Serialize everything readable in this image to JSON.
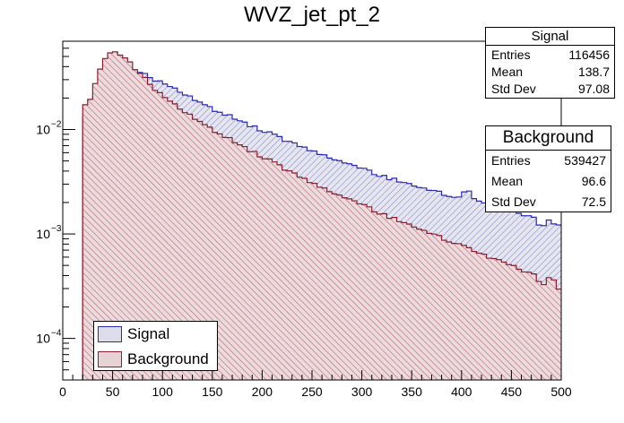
{
  "chart_data": {
    "type": "histogram",
    "title": "WVZ_jet_pt_2",
    "xlabel": "",
    "ylabel": "",
    "xlim": [
      0,
      500
    ],
    "ylim": [
      4e-05,
      0.07
    ],
    "yscale": "log",
    "x_ticks": [
      "0",
      "50",
      "100",
      "150",
      "200",
      "250",
      "300",
      "350",
      "400",
      "450",
      "500"
    ],
    "y_ticks": [
      {
        "label": "10",
        "exp": "−4",
        "value": 0.0001
      },
      {
        "label": "10",
        "exp": "−3",
        "value": 0.001
      },
      {
        "label": "10",
        "exp": "−2",
        "value": 0.01
      }
    ],
    "bin_width": 5,
    "colors": {
      "signal_line": "#2a2ab8",
      "signal_fill": "#dcdcea",
      "background_line": "#8b1d2e",
      "background_fill": "#e8d2d6"
    },
    "series": [
      {
        "name": "Signal",
        "fill_pattern": "hatched",
        "points": [
          [
            20,
            0.0
          ],
          [
            25,
            0.013
          ],
          [
            30,
            0.018
          ],
          [
            35,
            0.024
          ],
          [
            40,
            0.03
          ],
          [
            45,
            0.034
          ],
          [
            50,
            0.037
          ],
          [
            55,
            0.038
          ],
          [
            60,
            0.0385
          ],
          [
            65,
            0.037
          ],
          [
            70,
            0.036
          ],
          [
            80,
            0.034
          ],
          [
            90,
            0.031
          ],
          [
            100,
            0.028
          ],
          [
            120,
            0.022
          ],
          [
            150,
            0.0155
          ],
          [
            175,
            0.0125
          ],
          [
            200,
            0.0098
          ],
          [
            225,
            0.0078
          ],
          [
            250,
            0.0063
          ],
          [
            275,
            0.0051
          ],
          [
            300,
            0.0042
          ],
          [
            325,
            0.0035
          ],
          [
            350,
            0.0029
          ],
          [
            375,
            0.0025
          ],
          [
            400,
            0.0022
          ],
          [
            405,
            0.0028
          ],
          [
            410,
            0.0023
          ],
          [
            425,
            0.0019
          ],
          [
            450,
            0.0017
          ],
          [
            475,
            0.0014
          ],
          [
            480,
            0.0011
          ],
          [
            485,
            0.0014
          ],
          [
            495,
            0.0012
          ],
          [
            500,
            0.0013
          ]
        ]
      },
      {
        "name": "Background",
        "fill_pattern": "hatched",
        "points": [
          [
            20,
            0.0
          ],
          [
            25,
            0.017
          ],
          [
            30,
            0.024
          ],
          [
            35,
            0.033
          ],
          [
            40,
            0.045
          ],
          [
            45,
            0.052
          ],
          [
            50,
            0.056
          ],
          [
            55,
            0.055
          ],
          [
            60,
            0.05
          ],
          [
            65,
            0.046
          ],
          [
            70,
            0.04
          ],
          [
            80,
            0.032
          ],
          [
            90,
            0.026
          ],
          [
            100,
            0.021
          ],
          [
            120,
            0.015
          ],
          [
            150,
            0.0098
          ],
          [
            175,
            0.0074
          ],
          [
            200,
            0.0055
          ],
          [
            225,
            0.0041
          ],
          [
            250,
            0.0031
          ],
          [
            275,
            0.0024
          ],
          [
            300,
            0.0019
          ],
          [
            325,
            0.0015
          ],
          [
            350,
            0.00118
          ],
          [
            375,
            0.00095
          ],
          [
            400,
            0.00078
          ],
          [
            425,
            0.00062
          ],
          [
            450,
            0.0005
          ],
          [
            475,
            0.0004
          ],
          [
            480,
            0.00032
          ],
          [
            490,
            0.0004
          ],
          [
            495,
            0.00033
          ],
          [
            500,
            0.00028
          ]
        ]
      }
    ],
    "stats_boxes": [
      {
        "title": "Signal",
        "rows": [
          {
            "label": "Entries",
            "value": "116456"
          },
          {
            "label": "Mean",
            "value": "138.7"
          },
          {
            "label": "Std Dev",
            "value": "97.08"
          }
        ]
      },
      {
        "title": "Background",
        "rows": [
          {
            "label": "Entries",
            "value": "539427"
          },
          {
            "label": "Mean",
            "value": "96.6"
          },
          {
            "label": "Std Dev",
            "value": "72.5"
          }
        ]
      }
    ],
    "legend": {
      "position": "bottom-left",
      "entries": [
        "Signal",
        "Background"
      ]
    }
  }
}
